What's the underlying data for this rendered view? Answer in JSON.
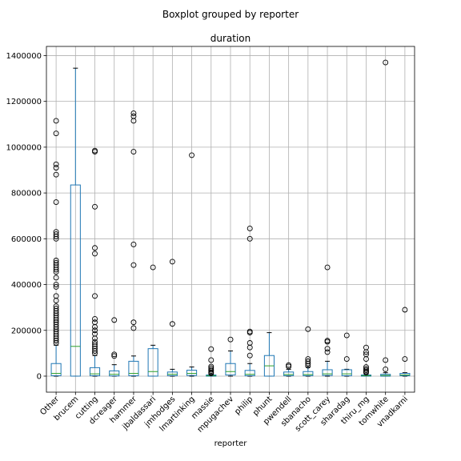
{
  "chart_data": {
    "type": "boxplot",
    "suptitle": "Boxplot grouped by reporter",
    "title": "duration",
    "xlabel": "reporter",
    "ylabel": "",
    "ylim": [
      -70000,
      1440000
    ],
    "yticks": [
      0,
      200000,
      400000,
      600000,
      800000,
      1000000,
      1200000,
      1400000
    ],
    "grid": true,
    "box_color": "#1f77b4",
    "median_color": "#2ca02c",
    "categories": [
      "Other",
      "brucem",
      "cutting",
      "dcreager",
      "hammer",
      "jbaldassari",
      "jmhodges",
      "lmartinking",
      "massie",
      "mpugachev",
      "philip",
      "phunt",
      "pwendell",
      "sbanacho",
      "scott_carey",
      "sharadag",
      "thiru_mg",
      "tomwhite",
      "vnadkarni"
    ],
    "boxes": [
      {
        "q1": 2000,
        "median": 12000,
        "q3": 55000,
        "whisker_low": 0,
        "whisker_high": 135000,
        "outliers": [
          1115000,
          1060000,
          925000,
          910000,
          880000,
          760000,
          630000,
          620000,
          610000,
          600000,
          505000,
          495000,
          485000,
          475000,
          465000,
          455000,
          430000,
          400000,
          390000,
          350000,
          330000,
          305000,
          295000,
          285000,
          275000,
          265000,
          255000,
          245000,
          235000,
          225000,
          215000,
          205000,
          195000,
          185000,
          175000,
          165000,
          155000,
          145000
        ]
      },
      {
        "q1": 0,
        "median": 130000,
        "q3": 835000,
        "whisker_low": 0,
        "whisker_high": 1345000,
        "outliers": []
      },
      {
        "q1": 2000,
        "median": 10000,
        "q3": 37000,
        "whisker_low": 0,
        "whisker_high": 90000,
        "outliers": [
          985000,
          980000,
          740000,
          560000,
          535000,
          350000,
          250000,
          235000,
          215000,
          200000,
          185000,
          165000,
          150000,
          140000,
          130000,
          120000,
          110000,
          100000
        ]
      },
      {
        "q1": 1000,
        "median": 8000,
        "q3": 23000,
        "whisker_low": 0,
        "whisker_high": 50000,
        "outliers": [
          245000,
          95000,
          88000
        ]
      },
      {
        "q1": 2000,
        "median": 12000,
        "q3": 65000,
        "whisker_low": 0,
        "whisker_high": 88000,
        "outliers": [
          1148000,
          1135000,
          1115000,
          980000,
          575000,
          485000,
          235000,
          210000
        ]
      },
      {
        "q1": 0,
        "median": 20000,
        "q3": 120000,
        "whisker_low": 0,
        "whisker_high": 135000,
        "outliers": [
          475000
        ]
      },
      {
        "q1": 2000,
        "median": 8000,
        "q3": 18000,
        "whisker_low": 0,
        "whisker_high": 30000,
        "outliers": [
          500000,
          228000
        ]
      },
      {
        "q1": 3000,
        "median": 12000,
        "q3": 26000,
        "whisker_low": 0,
        "whisker_high": 40000,
        "outliers": [
          965000
        ]
      },
      {
        "q1": 0,
        "median": 2000,
        "q3": 5000,
        "whisker_low": 0,
        "whisker_high": 8000,
        "outliers": [
          118000,
          70000,
          42000,
          35000,
          28000,
          22000,
          16000,
          12000
        ]
      },
      {
        "q1": 5000,
        "median": 20000,
        "q3": 55000,
        "whisker_low": 0,
        "whisker_high": 110000,
        "outliers": [
          160000
        ]
      },
      {
        "q1": 2000,
        "median": 8000,
        "q3": 25000,
        "whisker_low": 0,
        "whisker_high": 55000,
        "outliers": [
          645000,
          600000,
          195000,
          190000,
          145000,
          125000,
          90000
        ]
      },
      {
        "q1": 0,
        "median": 45000,
        "q3": 90000,
        "whisker_low": 0,
        "whisker_high": 190000,
        "outliers": []
      },
      {
        "q1": 2000,
        "median": 7000,
        "q3": 18000,
        "whisker_low": 0,
        "whisker_high": 30000,
        "outliers": [
          48000,
          42000
        ]
      },
      {
        "q1": 2000,
        "median": 7000,
        "q3": 20000,
        "whisker_low": 0,
        "whisker_high": 40000,
        "outliers": [
          205000,
          75000,
          65000,
          55000,
          45000
        ]
      },
      {
        "q1": 3000,
        "median": 10000,
        "q3": 28000,
        "whisker_low": 0,
        "whisker_high": 65000,
        "outliers": [
          475000,
          155000,
          150000,
          120000,
          105000
        ]
      },
      {
        "q1": 2000,
        "median": 10000,
        "q3": 28000,
        "whisker_low": 0,
        "whisker_high": 30000,
        "outliers": [
          178000,
          75000
        ]
      },
      {
        "q1": 0,
        "median": 2000,
        "q3": 5000,
        "whisker_low": 0,
        "whisker_high": 10000,
        "outliers": [
          125000,
          105000,
          95000,
          75000,
          40000,
          32000,
          26000,
          20000,
          15000
        ]
      },
      {
        "q1": 0,
        "median": 3000,
        "q3": 8000,
        "whisker_low": 0,
        "whisker_high": 15000,
        "outliers": [
          1370000,
          70000,
          30000
        ]
      },
      {
        "q1": 2000,
        "median": 5000,
        "q3": 12000,
        "whisker_low": 0,
        "whisker_high": 15000,
        "outliers": [
          290000,
          75000
        ]
      }
    ]
  }
}
